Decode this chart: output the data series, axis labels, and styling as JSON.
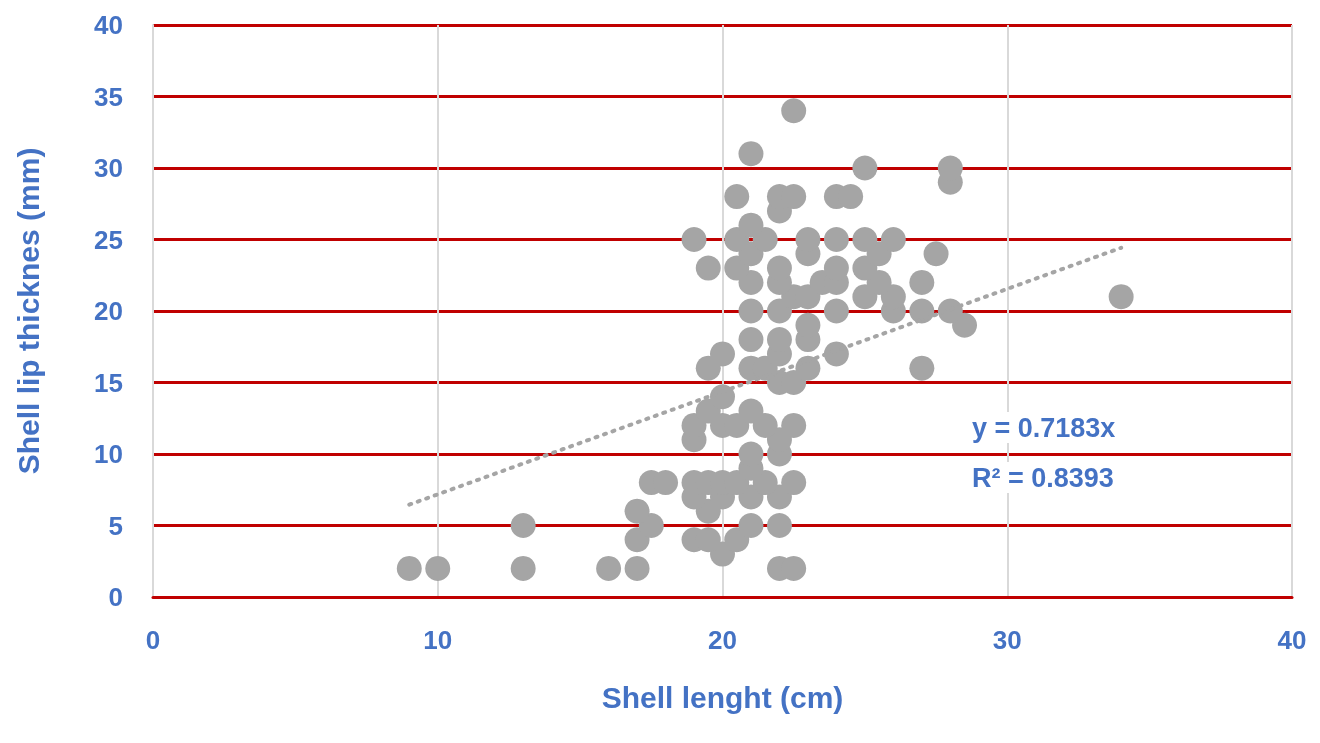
{
  "chart_data": {
    "type": "scatter",
    "xlabel": "Shell lenght (cm)",
    "ylabel": "Shell lip thicknes (mm)",
    "xlim": [
      0,
      40
    ],
    "xticks": [
      0,
      10,
      20,
      30,
      40
    ],
    "ylim": [
      0,
      40
    ],
    "yticks": [
      0,
      5,
      10,
      15,
      20,
      25,
      30,
      35,
      40
    ],
    "grid": true,
    "annotations": [
      "y = 0.7183x",
      "R² = 0.8393"
    ],
    "series": [
      {
        "marker": "circle",
        "color": "#a5a5a5",
        "x": [
          9,
          10,
          13,
          16,
          17,
          22,
          22.5,
          20,
          17,
          19,
          19.5,
          20.5,
          13,
          17.5,
          21,
          22,
          17,
          19.5,
          19,
          20,
          21,
          22,
          17.5,
          18,
          19,
          19.5,
          20,
          20.5,
          21.5,
          22.5,
          21,
          21,
          22,
          19,
          22,
          19,
          20,
          20.5,
          21.5,
          22.5,
          19.5,
          21,
          20,
          22,
          22.5,
          19.5,
          21,
          21.5,
          23,
          27,
          20,
          22,
          24,
          21,
          22,
          23,
          23,
          28.5,
          21,
          22,
          24,
          26,
          27,
          28,
          22.5,
          23,
          25,
          26,
          34,
          21,
          22,
          23.5,
          24,
          25.5,
          27,
          19.5,
          20.5,
          22,
          24,
          25,
          21,
          23,
          25.5,
          27.5,
          19,
          20.5,
          21.5,
          23,
          24,
          25,
          26,
          21,
          22,
          20.5,
          22,
          22.5,
          24,
          24.5,
          28,
          25,
          28,
          21,
          22.5
        ],
        "values": [
          2,
          2,
          2,
          2,
          2,
          2,
          2,
          3,
          4,
          4,
          4,
          4,
          5,
          5,
          5,
          5,
          6,
          6,
          7,
          7,
          7,
          7,
          8,
          8,
          8,
          8,
          8,
          8,
          8,
          8,
          9,
          10,
          10,
          11,
          11,
          12,
          12,
          12,
          12,
          12,
          13,
          13,
          14,
          15,
          15,
          16,
          16,
          16,
          16,
          16,
          17,
          17,
          17,
          18,
          18,
          18,
          19,
          19,
          20,
          20,
          20,
          20,
          20,
          20,
          21,
          21,
          21,
          21,
          21,
          22,
          22,
          22,
          22,
          22,
          22,
          23,
          23,
          23,
          23,
          23,
          24,
          24,
          24,
          24,
          25,
          25,
          25,
          25,
          25,
          25,
          25,
          26,
          27,
          28,
          28,
          28,
          28,
          28,
          29,
          30,
          30,
          31,
          34
        ]
      },
      {
        "type": "line",
        "marker": "none",
        "line_style": "dotted",
        "color": "#a5a5a5",
        "x": [
          9,
          34
        ],
        "values": [
          6.46,
          24.42
        ]
      }
    ]
  }
}
